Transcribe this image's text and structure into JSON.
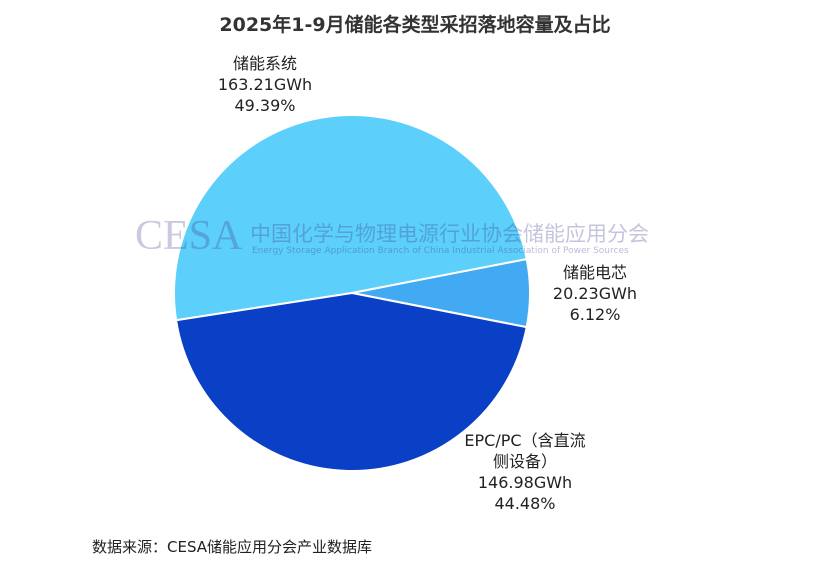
{
  "chart_data": {
    "type": "pie",
    "title": "2025年1-9月储能各类型采招落地容量及占比",
    "categories": [
      "储能系统",
      "储能电芯",
      "EPC/PC（含直流侧设备）"
    ],
    "values": [
      163.21,
      20.23,
      146.98
    ],
    "value_labels": [
      "163.21GWh",
      "20.23GWh",
      "146.98GWh"
    ],
    "percents": [
      49.39,
      6.12,
      44.48
    ],
    "percent_labels": [
      "49.39%",
      "6.12%",
      "44.48%"
    ],
    "colors": [
      "#5ccffb",
      "#42aaf3",
      "#0a40c6"
    ],
    "watermark": {
      "logo": "CESA",
      "org": "中国化学与物理电源行业协会储能应用分会",
      "org_en": "Energy Storage Application Branch of China Industrial Association of Power Sources"
    },
    "source": "数据来源：CESA储能应用分会产业数据库"
  }
}
